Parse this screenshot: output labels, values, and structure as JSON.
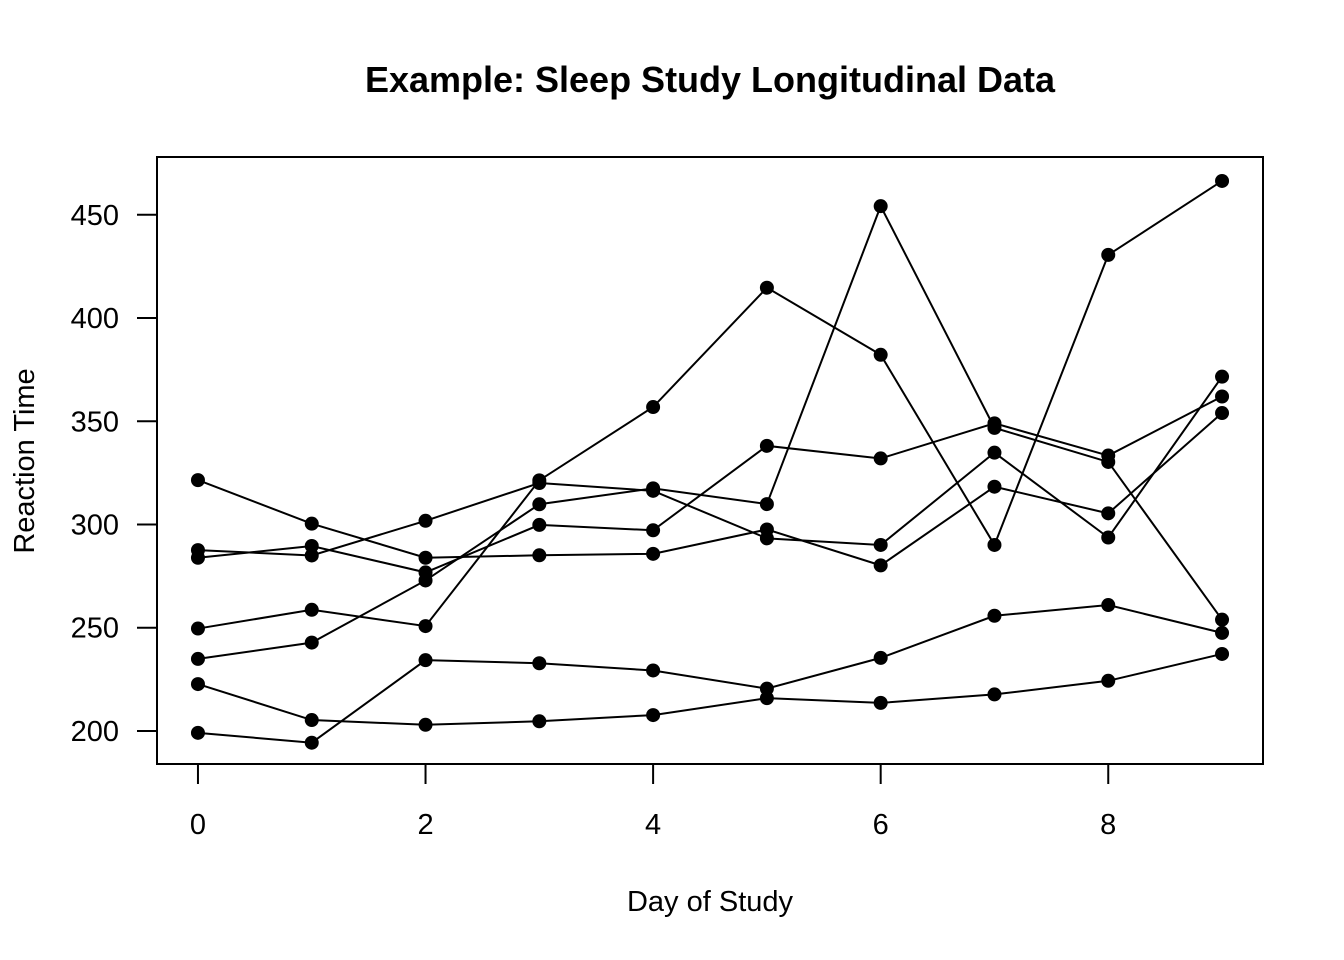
{
  "chart_data": {
    "type": "line",
    "title": "Example: Sleep Study Longitudinal Data",
    "xlabel": "Day of Study",
    "ylabel": "Reaction Time",
    "xlim": [
      -0.36,
      9.36
    ],
    "ylim": [
      184,
      478
    ],
    "xticks": [
      0,
      2,
      4,
      6,
      8
    ],
    "yticks": [
      200,
      250,
      300,
      350,
      400,
      450
    ],
    "grid": false,
    "legend": "none",
    "markers": "filled-circle",
    "color": "#000000",
    "x": [
      0,
      1,
      2,
      3,
      4,
      5,
      6,
      7,
      8,
      9
    ],
    "series": [
      {
        "values": [
          249.6,
          258.7,
          250.8,
          321.4,
          356.9,
          414.7,
          382.2,
          290.1,
          430.6,
          466.4
        ]
      },
      {
        "values": [
          222.7,
          205.3,
          203.0,
          204.7,
          207.7,
          215.9,
          213.6,
          217.7,
          224.3,
          237.3
        ]
      },
      {
        "values": [
          199.1,
          194.3,
          234.3,
          232.8,
          229.3,
          220.5,
          235.4,
          255.8,
          261.0,
          247.5
        ]
      },
      {
        "values": [
          321.5,
          300.4,
          283.9,
          285.1,
          285.8,
          297.6,
          280.2,
          318.3,
          305.4,
          354.0
        ]
      },
      {
        "values": [
          287.6,
          285.0,
          301.8,
          320.1,
          316.3,
          293.3,
          290.1,
          334.8,
          293.7,
          371.6
        ]
      },
      {
        "values": [
          234.9,
          242.8,
          272.9,
          309.8,
          317.5,
          309.9,
          454.2,
          346.8,
          330.3,
          253.9
        ]
      },
      {
        "values": [
          283.9,
          289.6,
          276.8,
          299.8,
          297.2,
          338.1,
          332.0,
          349.0,
          333.4,
          362.0
        ]
      }
    ]
  }
}
